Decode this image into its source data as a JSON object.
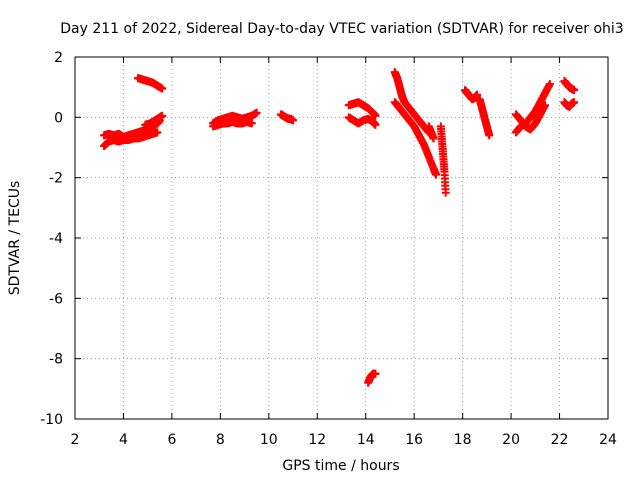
{
  "chart_data": {
    "type": "scatter",
    "title": "Day 211 of 2022, Sidereal Day-to-day VTEC variation (SDTVAR) for receiver ohi3",
    "xlabel": "GPS time / hours",
    "ylabel": "SDTVAR / TECUs",
    "xlim": [
      2,
      24
    ],
    "ylim": [
      -10,
      2
    ],
    "xticks": [
      "2",
      "4",
      "6",
      "8",
      "10",
      "12",
      "14",
      "16",
      "18",
      "20",
      "22",
      "24"
    ],
    "yticks": [
      "2",
      "0",
      "-2",
      "-4",
      "-6",
      "-8",
      "-10"
    ],
    "grid": true,
    "marker": "plus",
    "series": [
      {
        "name": "SDTVAR",
        "color": "#ff0000",
        "segments": [
          {
            "x": [
              3.2,
              3.4,
              3.6,
              3.8,
              4.0,
              4.2,
              4.4,
              4.6,
              4.8,
              5.0,
              5.2,
              5.4,
              5.5
            ],
            "y": [
              -0.6,
              -0.55,
              -0.6,
              -0.55,
              -0.65,
              -0.6,
              -0.55,
              -0.5,
              -0.45,
              -0.35,
              -0.3,
              -0.2,
              -0.1
            ]
          },
          {
            "x": [
              3.2,
              3.4,
              3.6,
              3.8,
              4.0,
              4.2,
              4.4,
              4.6,
              4.8,
              5.0,
              5.2,
              5.4
            ],
            "y": [
              -0.95,
              -0.8,
              -0.75,
              -0.8,
              -0.75,
              -0.75,
              -0.7,
              -0.7,
              -0.65,
              -0.6,
              -0.55,
              -0.5
            ]
          },
          {
            "x": [
              4.6,
              4.8,
              5.0,
              5.2,
              5.4,
              5.6
            ],
            "y": [
              1.3,
              1.25,
              1.2,
              1.15,
              1.05,
              0.95
            ]
          },
          {
            "x": [
              4.9,
              5.1,
              5.3,
              5.5,
              5.6
            ],
            "y": [
              -0.25,
              -0.2,
              -0.1,
              0.0,
              0.05
            ]
          },
          {
            "x": [
              7.7,
              7.9,
              8.1,
              8.3,
              8.5,
              8.7,
              8.9,
              9.1,
              9.3,
              9.5
            ],
            "y": [
              -0.2,
              -0.1,
              -0.05,
              0.0,
              0.05,
              0.0,
              -0.05,
              0.0,
              0.05,
              0.15
            ]
          },
          {
            "x": [
              7.7,
              7.9,
              8.1,
              8.3,
              8.5,
              8.7,
              8.9,
              9.1,
              9.3
            ],
            "y": [
              -0.3,
              -0.25,
              -0.2,
              -0.2,
              -0.15,
              -0.2,
              -0.2,
              -0.15,
              -0.2
            ]
          },
          {
            "x": [
              10.5,
              10.6,
              10.7,
              10.8,
              10.9,
              11.0
            ],
            "y": [
              0.1,
              0.05,
              0.0,
              -0.05,
              -0.05,
              -0.1
            ]
          },
          {
            "x": [
              13.3,
              13.5,
              13.7,
              13.9,
              14.1,
              14.3,
              14.4
            ],
            "y": [
              0.4,
              0.45,
              0.5,
              0.4,
              0.3,
              0.15,
              0.05
            ]
          },
          {
            "x": [
              13.3,
              13.5,
              13.7,
              13.9,
              14.1,
              14.3,
              14.4
            ],
            "y": [
              0.0,
              -0.1,
              -0.2,
              -0.1,
              -0.05,
              -0.15,
              -0.25
            ]
          },
          {
            "x": [
              14.1,
              14.2,
              14.3,
              14.4
            ],
            "y": [
              -8.8,
              -8.6,
              -8.5,
              -8.5
            ]
          },
          {
            "x": [
              15.2,
              15.3,
              15.4,
              15.5,
              15.6,
              15.8,
              16.0,
              16.2,
              16.4,
              16.6
            ],
            "y": [
              1.5,
              1.3,
              1.0,
              0.7,
              0.5,
              0.3,
              0.1,
              -0.1,
              -0.3,
              -0.5
            ]
          },
          {
            "x": [
              15.2,
              15.4,
              15.6,
              15.8,
              16.0,
              16.2,
              16.4,
              16.6,
              16.8,
              16.9
            ],
            "y": [
              0.5,
              0.3,
              0.1,
              -0.1,
              -0.3,
              -0.6,
              -0.9,
              -1.3,
              -1.7,
              -1.9
            ]
          },
          {
            "x": [
              16.6,
              16.7,
              16.8
            ],
            "y": [
              -0.3,
              -0.5,
              -0.7
            ]
          },
          {
            "x": [
              17.1,
              17.15,
              17.2,
              17.25,
              17.3
            ],
            "y": [
              -0.3,
              -0.8,
              -1.3,
              -1.8,
              -2.5
            ]
          },
          {
            "x": [
              18.1,
              18.2,
              18.3,
              18.4,
              18.5,
              18.6
            ],
            "y": [
              0.9,
              0.8,
              0.7,
              0.6,
              0.65,
              0.75
            ]
          },
          {
            "x": [
              18.7,
              18.8,
              18.9,
              19.0,
              19.1
            ],
            "y": [
              0.6,
              0.3,
              0.0,
              -0.3,
              -0.6
            ]
          },
          {
            "x": [
              20.2,
              20.4,
              20.6,
              20.8,
              21.0,
              21.2,
              21.4,
              21.6
            ],
            "y": [
              -0.5,
              -0.3,
              -0.2,
              0.0,
              0.2,
              0.5,
              0.8,
              1.1
            ]
          },
          {
            "x": [
              20.2,
              20.4,
              20.6,
              20.8,
              21.0,
              21.2,
              21.4
            ],
            "y": [
              0.1,
              -0.1,
              -0.3,
              -0.4,
              -0.2,
              0.1,
              0.4
            ]
          },
          {
            "x": [
              22.2,
              22.3,
              22.4,
              22.5,
              22.6
            ],
            "y": [
              1.2,
              1.1,
              1.0,
              0.95,
              0.9
            ]
          },
          {
            "x": [
              22.2,
              22.3,
              22.4,
              22.5,
              22.6
            ],
            "y": [
              0.5,
              0.4,
              0.35,
              0.45,
              0.5
            ]
          }
        ]
      }
    ]
  }
}
